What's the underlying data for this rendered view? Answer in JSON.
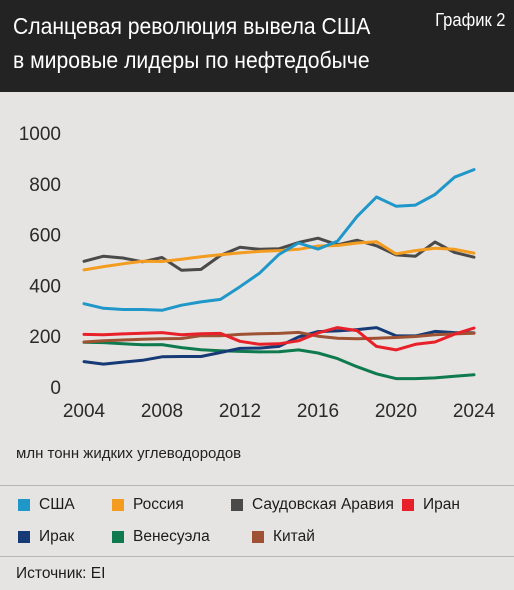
{
  "header": {
    "title_line1": "Сланцевая революция вывела США",
    "title_line2": "в мировые лидеры по нефтедобыче",
    "figure_label": "График 2"
  },
  "unit_label": "млн тонн жидких углеводородов",
  "source": "Источник: EI",
  "colors": {
    "header_bg": "#232323",
    "background": "#e6e4e2",
    "grid": "#cfcdca"
  },
  "chart_data": {
    "type": "line",
    "x": [
      2004,
      2005,
      2006,
      2007,
      2008,
      2009,
      2010,
      2011,
      2012,
      2013,
      2014,
      2015,
      2016,
      2017,
      2018,
      2019,
      2020,
      2021,
      2022,
      2023,
      2024
    ],
    "xticks": [
      "2004",
      "2008",
      "2012",
      "2016",
      "2020",
      "2024"
    ],
    "yticks": [
      "0",
      "200",
      "400",
      "600",
      "800",
      "1000"
    ],
    "ylim": [
      0,
      1000
    ],
    "xlim": [
      2004,
      2024
    ],
    "grid": false,
    "legend_position": "bottom",
    "series": [
      {
        "name": "США",
        "color": "#1f97c8",
        "values": [
          328,
          310,
          305,
          305,
          302,
          322,
          335,
          345,
          395,
          448,
          522,
          567,
          543,
          574,
          671,
          748,
          712,
          716,
          758,
          826,
          856
        ]
      },
      {
        "name": "Россия",
        "color": "#f39c1f",
        "values": [
          461,
          474,
          485,
          495,
          494,
          503,
          513,
          521,
          528,
          534,
          537,
          542,
          555,
          557,
          567,
          572,
          524,
          537,
          546,
          542,
          527
        ]
      },
      {
        "name": "Саудовская Аравия",
        "color": "#4a4a4a",
        "values": [
          495,
          515,
          508,
          493,
          510,
          460,
          463,
          518,
          550,
          542,
          544,
          569,
          586,
          560,
          578,
          556,
          520,
          515,
          571,
          530,
          511
        ]
      },
      {
        "name": "Иран",
        "color": "#e8202a",
        "values": [
          207,
          206,
          209,
          212,
          214,
          206,
          210,
          211,
          180,
          168,
          170,
          182,
          213,
          234,
          222,
          160,
          146,
          168,
          177,
          208,
          232
        ]
      },
      {
        "name": "Ирак",
        "color": "#163a75",
        "values": [
          100,
          90,
          98,
          105,
          119,
          120,
          120,
          136,
          152,
          153,
          160,
          197,
          218,
          221,
          226,
          234,
          202,
          201,
          219,
          214,
          213
        ]
      },
      {
        "name": "Венесуэла",
        "color": "#0f7a4e",
        "values": [
          176,
          175,
          170,
          166,
          167,
          155,
          147,
          143,
          140,
          138,
          139,
          146,
          134,
          112,
          80,
          52,
          33,
          33,
          36,
          42,
          48
        ]
      },
      {
        "name": "Китай",
        "color": "#9e5233",
        "values": [
          177,
          182,
          185,
          188,
          190,
          191,
          202,
          202,
          207,
          210,
          211,
          215,
          200,
          192,
          190,
          192,
          195,
          199,
          206,
          209,
          212
        ]
      }
    ]
  }
}
